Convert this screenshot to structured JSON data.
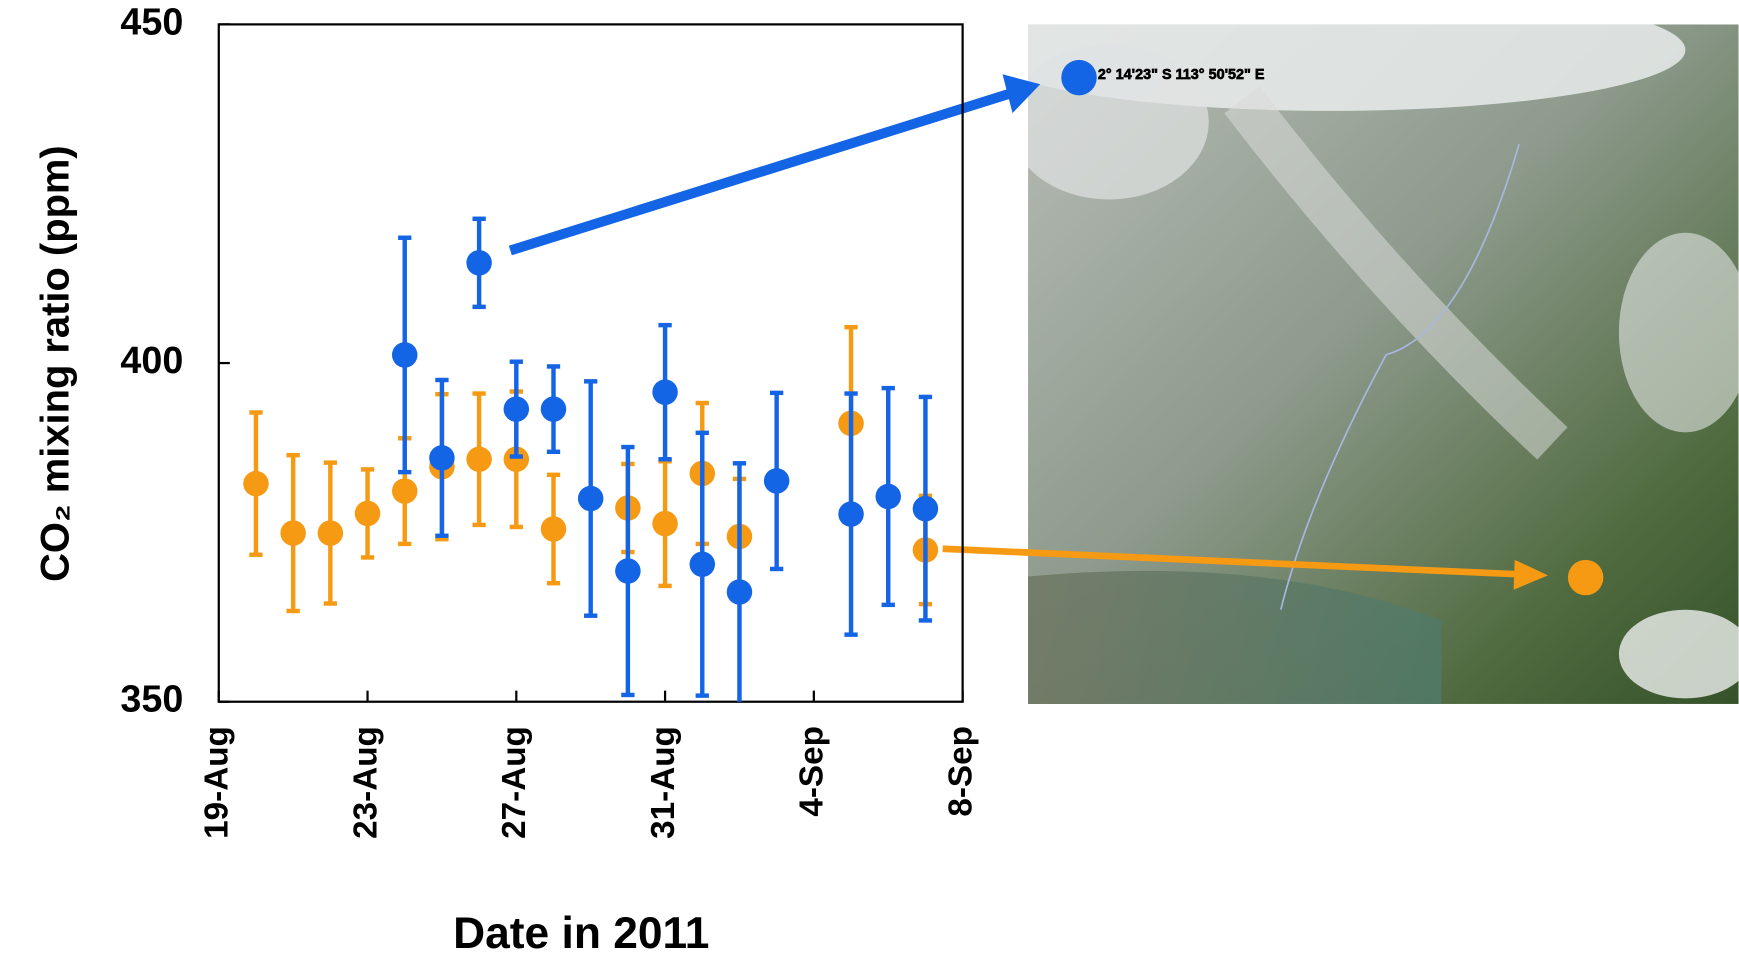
{
  "chart_data": {
    "type": "scatter",
    "x_label": "Date in 2011",
    "y_label": "CO₂ mixing ratio (ppm)",
    "annotation": "2° 14'23\" S 113° 50'52\" E",
    "xlim": [
      19,
      39
    ],
    "xticks": [
      {
        "value": 19,
        "label": "19-Aug"
      },
      {
        "value": 23,
        "label": "23-Aug"
      },
      {
        "value": 27,
        "label": "27-Aug"
      },
      {
        "value": 31,
        "label": "31-Aug"
      },
      {
        "value": 35,
        "label": "4-Sep"
      },
      {
        "value": 39,
        "label": "8-Sep"
      }
    ],
    "ylim": [
      350,
      450
    ],
    "yticks": [
      350,
      400,
      450
    ],
    "series": [
      {
        "color": "#f59a12",
        "x": [
          20,
          21,
          22,
          23,
          24,
          25,
          26,
          27,
          28,
          30,
          31,
          32,
          33,
          36,
          38
        ],
        "values": [
          382.2,
          374.9,
          374.9,
          377.8,
          381.1,
          384.7,
          385.8,
          385.8,
          375.5,
          378.6,
          376.3,
          383.7,
          374.4,
          391.1,
          372.4
        ],
        "errors": [
          10.5,
          11.5,
          10.4,
          6.5,
          7.8,
          10.7,
          9.7,
          10,
          8,
          6.5,
          9.2,
          10.4,
          8.5,
          14.2,
          8
        ]
      },
      {
        "color": "#1465e6",
        "x": [
          24,
          25,
          26,
          27,
          28,
          29,
          30,
          31,
          32,
          33,
          34,
          36,
          37,
          38
        ],
        "values": [
          401.2,
          386.0,
          414.8,
          393.2,
          393.2,
          380.0,
          369.3,
          395.7,
          370.3,
          366.2,
          382.6,
          377.7,
          380.3,
          378.5
        ],
        "errors": [
          17.3,
          11.5,
          6.5,
          7,
          6.3,
          17.3,
          18.3,
          9.9,
          19.4,
          19,
          13,
          17.8,
          16,
          16.5
        ]
      }
    ]
  }
}
